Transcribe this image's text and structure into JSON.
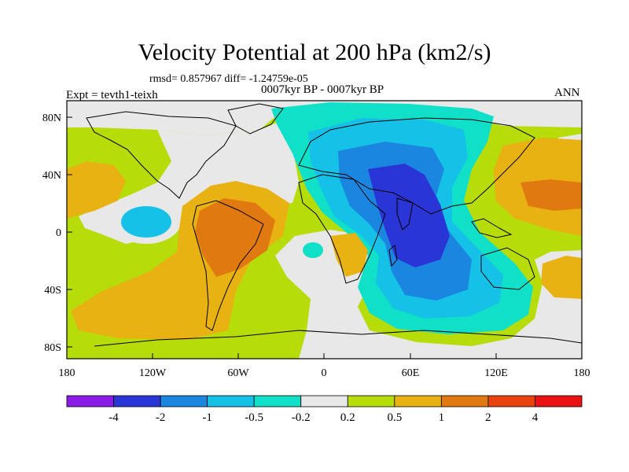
{
  "figure": {
    "title": "Velocity Potential at 200 hPa (km2/s)",
    "stats": "rmsd= 0.857967 diff= -1.24759e-05",
    "period": "0007kyr BP - 0007kyr BP",
    "experiment": "Expt = tevth1-teixh",
    "season": "ANN"
  },
  "map": {
    "x_ticks": [
      "180",
      "120W",
      "60W",
      "0",
      "60E",
      "120E",
      "180"
    ],
    "y_ticks": [
      "80N",
      "40N",
      "0",
      "40S",
      "80S"
    ]
  },
  "colorbar": {
    "labels": [
      "-4",
      "-2",
      "-1",
      "-0.5",
      "-0.2",
      "0.2",
      "0.5",
      "1",
      "2",
      "4"
    ],
    "colors": [
      "#8a1ce6",
      "#2a35d6",
      "#1a86e0",
      "#15c1e6",
      "#10e0c8",
      "#e8e8e8",
      "#b6dc0a",
      "#e8b212",
      "#e07a10",
      "#e8420e",
      "#e81212"
    ]
  }
}
